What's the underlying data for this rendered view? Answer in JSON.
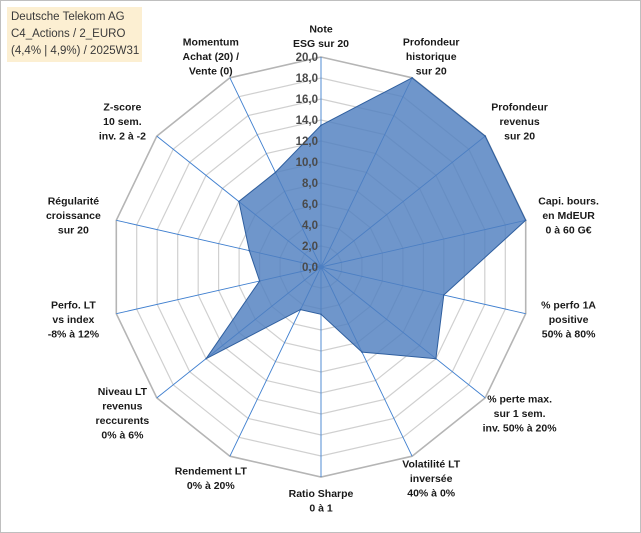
{
  "title_lines": [
    "Deutsche Telekom AG",
    "C4_Actions / 2_EURO",
    "(4,4% | 4,9%) / 2025W31"
  ],
  "chart_data": {
    "type": "radar",
    "rmin": 0,
    "rmax": 20,
    "ticks": [
      "0,0",
      "2,0",
      "4,0",
      "6,0",
      "8,0",
      "10,0",
      "12,0",
      "14,0",
      "16,0",
      "18,0",
      "20,0"
    ],
    "colors": {
      "fill": "#4f7fbf",
      "outline": "#2f5f9f",
      "grid": "#d0d0d0",
      "spoke": "#3f7fcf"
    },
    "axes": [
      {
        "label": [
          "Note",
          "ESG sur 20"
        ],
        "value": 13.5
      },
      {
        "label": [
          "Profondeur",
          "historique",
          "sur 20"
        ],
        "value": 20
      },
      {
        "label": [
          "Profondeur",
          "revenus",
          "sur 20"
        ],
        "value": 20
      },
      {
        "label": [
          "Capi. bours.",
          "en MdEUR",
          "0 à 60 G€"
        ],
        "value": 20
      },
      {
        "label": [
          "% perfo 1A",
          "positive",
          "50% à 80%"
        ],
        "value": 12
      },
      {
        "label": [
          "% perte max.",
          "sur 1 sem.",
          "inv. 50% à 20%"
        ],
        "value": 14
      },
      {
        "label": [
          "Volatilité LT",
          "inversée",
          "40% à 0%"
        ],
        "value": 9
      },
      {
        "label": [
          "Ratio Sharpe",
          "0 à 1"
        ],
        "value": 4.5
      },
      {
        "label": [
          "Rendement LT",
          "0% à 20%"
        ],
        "value": 4.5
      },
      {
        "label": [
          "Niveau LT",
          "revenus",
          "reccurents",
          "0% à 6%"
        ],
        "value": 14
      },
      {
        "label": [
          "Perfo. LT",
          "vs index",
          "-8% à 12%"
        ],
        "value": 6
      },
      {
        "label": [
          "Régularité",
          "croissance",
          "sur 20"
        ],
        "value": 7
      },
      {
        "label": [
          "Z-score",
          "10 sem.",
          "inv. 2 à -2"
        ],
        "value": 10
      },
      {
        "label": [
          "Momentum",
          "Achat (20) /",
          "Vente (0)"
        ],
        "value": 10
      }
    ]
  }
}
